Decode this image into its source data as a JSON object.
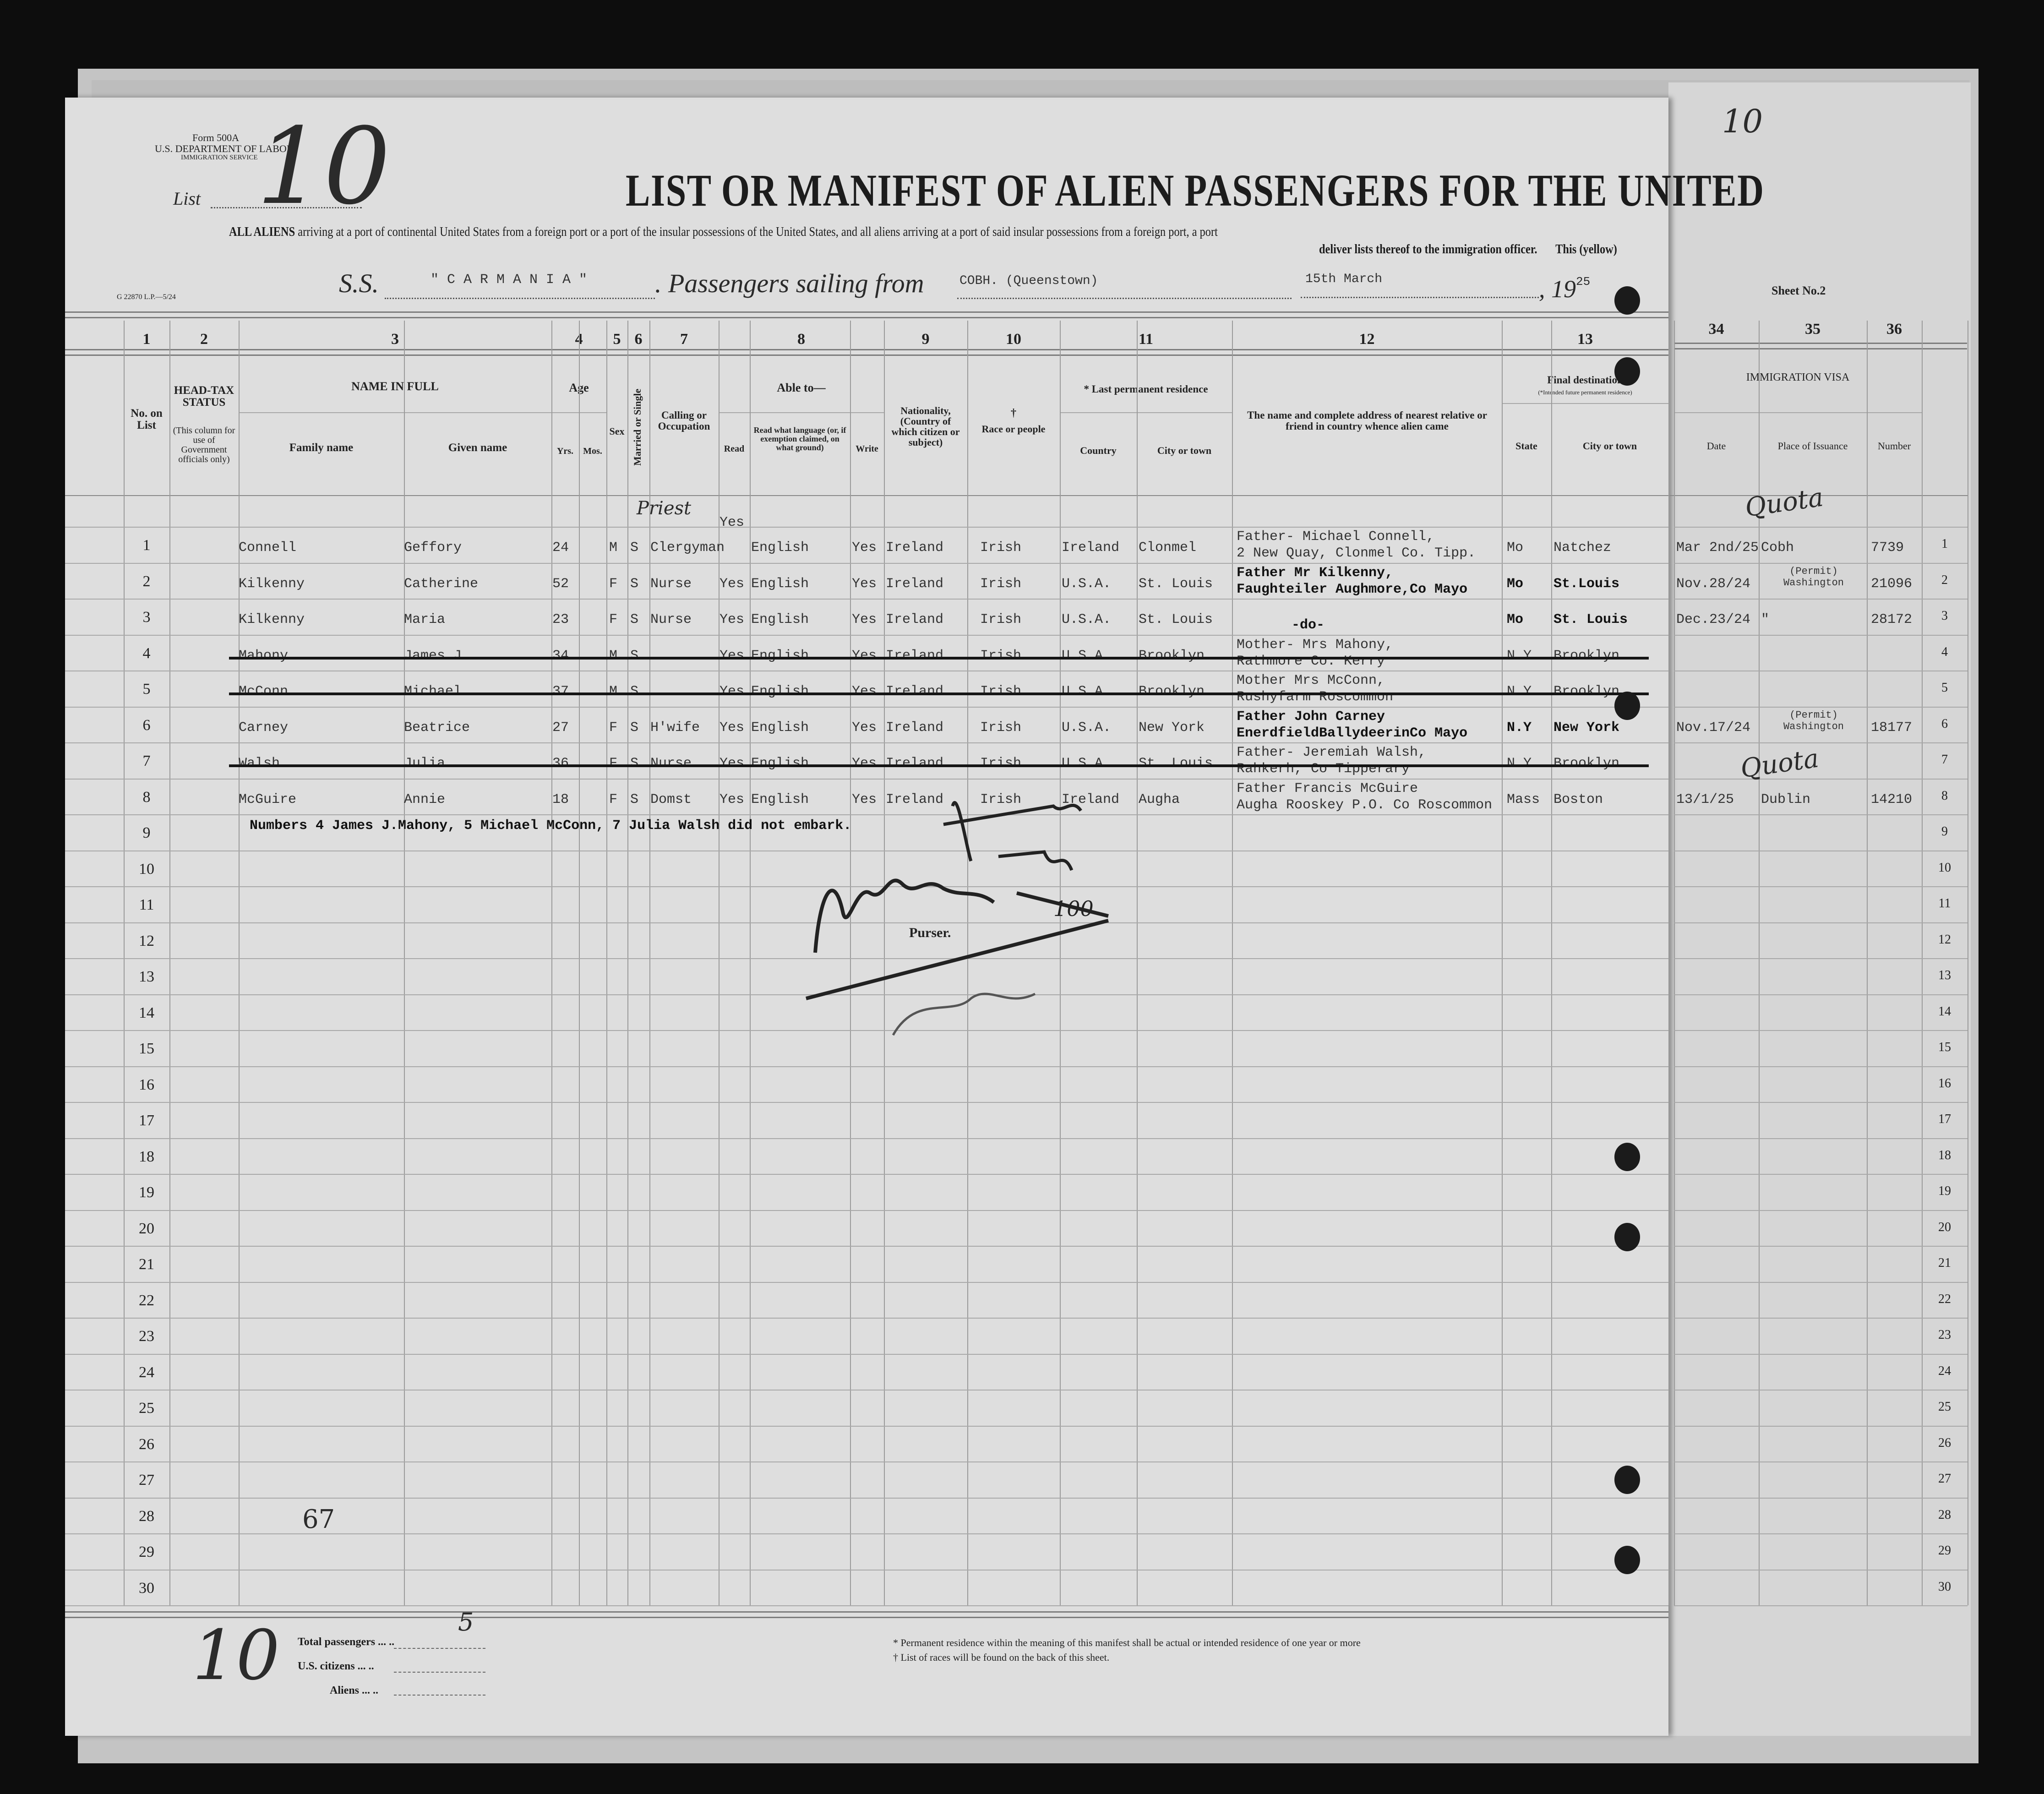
{
  "form": {
    "form_number": "Form 500A",
    "department": "U.S. DEPARTMENT OF LABOR",
    "service": "IMMIGRATION SERVICE",
    "list_label": "List",
    "print_code": "G 22870 L.P.—5/24",
    "title": "LIST OR MANIFEST OF ALIEN PASSENGERS FOR THE UNITED",
    "instructions_line1_bold": "ALL ALIENS",
    "instructions_line1": "arriving at a port of continental United States from a foreign port or a port of the insular possessions of the United States, and all aliens arriving at a port of said insular possessions from a foreign port, a port",
    "instructions_line2": "deliver lists thereof to the immigration officer.",
    "instructions_line2_end": "This (yellow)",
    "ss_label": "S.S.",
    "ship_name": "\"CARMANIA\"",
    "sailing_label": ". Passengers sailing from",
    "port": "COBH. (Queenstown)",
    "date": "15th March",
    "year_prefix": ", 19",
    "year_suffix": "25",
    "sheet": "Sheet No.2"
  },
  "columns": {
    "numbers": [
      "1",
      "2",
      "3",
      "4",
      "5",
      "6",
      "7",
      "8",
      "9",
      "10",
      "11",
      "12",
      "13",
      "34",
      "35",
      "36"
    ],
    "no_on_list": "No. on List",
    "head_tax": "HEAD-TAX STATUS",
    "head_tax_note": "(This column for use of Government officials only)",
    "name_in_full": "NAME IN FULL",
    "family_name": "Family name",
    "given_name": "Given name",
    "age": "Age",
    "yrs": "Yrs.",
    "mos": "Mos.",
    "sex": "Sex",
    "married": "Married or Single",
    "occupation": "Calling or Occupation",
    "able_to": "Able to—",
    "read": "Read",
    "read_language": "Read what language (or, if exemption claimed, on what ground)",
    "write": "Write",
    "nationality": "Nationality, (Country of which citizen or subject)",
    "race": "Race or people",
    "race_mark": "†",
    "last_residence": "* Last permanent residence",
    "country": "Country",
    "city": "City or town",
    "relative": "The name and complete address of nearest relative or friend in country whence alien came",
    "final_destination": "Final destination",
    "final_note": "(*Intended future permanent residence)",
    "state": "State",
    "dest_city": "City or town",
    "immigration_visa": "IMMIGRATION VISA",
    "visa_date": "Date",
    "visa_place": "Place of Issuance",
    "visa_number": "Number"
  },
  "passengers": [
    {
      "no": "1",
      "family": "Connell",
      "given": "Geffory",
      "age": "24",
      "sex": "M",
      "status": "S",
      "occupation": "Clergyman",
      "read": "Yes",
      "language": "English",
      "write": "Yes",
      "nationality": "Ireland",
      "race": "Irish",
      "country": "Ireland",
      "city": "Clonmel",
      "relative1": "Father- Michael Connell,",
      "relative2": "2 New Quay, Clonmel Co. Tipp.",
      "state": "Mo",
      "dest_city": "Natchez",
      "visa_date": "Mar 2nd/25",
      "visa_place": "Cobh",
      "visa_number": "7739",
      "struck": false
    },
    {
      "no": "2",
      "family": "Kilkenny",
      "given": "Catherine",
      "age": "52",
      "sex": "F",
      "status": "S",
      "occupation": "Nurse",
      "read": "Yes",
      "language": "English",
      "write": "Yes",
      "nationality": "Ireland",
      "race": "Irish",
      "country": "U.S.A.",
      "city": "St. Louis",
      "relative1": "Father Mr Kilkenny,",
      "relative2": "Faughteiler Aughmore,Co Mayo",
      "state": "Mo",
      "dest_city": "St.Louis",
      "visa_date": "Nov.28/24",
      "visa_place": "(Permit) Washington",
      "visa_number": "21096",
      "struck": false,
      "bold_relative": true
    },
    {
      "no": "3",
      "family": "Kilkenny",
      "given": "Maria",
      "age": "23",
      "sex": "F",
      "status": "S",
      "occupation": "Nurse",
      "read": "Yes",
      "language": "English",
      "write": "Yes",
      "nationality": "Ireland",
      "race": "Irish",
      "country": "U.S.A.",
      "city": "St. Louis",
      "relative1": "",
      "relative2": "-do-",
      "state": "Mo",
      "dest_city": "St. Louis",
      "visa_date": "Dec.23/24",
      "visa_place": "\"",
      "visa_number": "28172",
      "struck": false,
      "bold_relative": true
    },
    {
      "no": "4",
      "family": "Mahony",
      "given": "James J.",
      "age": "34",
      "sex": "M",
      "status": "S",
      "occupation": "",
      "read": "Yes",
      "language": "English",
      "write": "Yes",
      "nationality": "Ireland",
      "race": "Irish",
      "country": "U.S.A.",
      "city": "Brooklyn",
      "relative1": "Mother- Mrs Mahony,",
      "relative2": "Rathmore Co. Kerry",
      "state": "N.Y",
      "dest_city": "Brooklyn",
      "visa_date": "",
      "visa_place": "",
      "visa_number": "",
      "struck": true
    },
    {
      "no": "5",
      "family": "McConn",
      "given": "Michael",
      "age": "37",
      "sex": "M",
      "status": "S",
      "occupation": "",
      "read": "Yes",
      "language": "English",
      "write": "Yes",
      "nationality": "Ireland",
      "race": "Irish",
      "country": "U.S.A.",
      "city": "Brooklyn",
      "relative1": "Mother Mrs McConn,",
      "relative2": "Rushyfarm Roscommon",
      "state": "N.Y",
      "dest_city": "Brooklyn",
      "visa_date": "",
      "visa_place": "",
      "visa_number": "",
      "struck": true
    },
    {
      "no": "6",
      "family": "Carney",
      "given": "Beatrice",
      "age": "27",
      "sex": "F",
      "status": "S",
      "occupation": "H'wife",
      "read": "Yes",
      "language": "English",
      "write": "Yes",
      "nationality": "Ireland",
      "race": "Irish",
      "country": "U.S.A.",
      "city": "New York",
      "relative1": "Father John Carney",
      "relative2": "EnerdfieldBallydeerinCo Mayo",
      "state": "N.Y",
      "dest_city": "New York",
      "visa_date": "Nov.17/24",
      "visa_place": "(Permit) Washington",
      "visa_number": "18177",
      "struck": false,
      "bold_relative": true
    },
    {
      "no": "7",
      "family": "Walsh",
      "given": "Julia",
      "age": "36",
      "sex": "F",
      "status": "S",
      "occupation": "Nurse",
      "read": "Yes",
      "language": "English",
      "write": "Yes",
      "nationality": "Ireland",
      "race": "Irish",
      "country": "U.S.A.",
      "city": "St. Louis",
      "relative1": "Father- Jeremiah Walsh,",
      "relative2": "Rahkerh, Co Tipperary",
      "state": "N.Y",
      "dest_city": "Brooklyn",
      "visa_date": "",
      "visa_place": "",
      "visa_number": "",
      "struck": true
    },
    {
      "no": "8",
      "family": "McGuire",
      "given": "Annie",
      "age": "18",
      "sex": "F",
      "status": "S",
      "occupation": "Domst",
      "read": "Yes",
      "language": "English",
      "write": "Yes",
      "nationality": "Ireland",
      "race": "Irish",
      "country": "Ireland",
      "city": "Augha",
      "relative1": "Father  Francis McGuire",
      "relative2": "Augha  Rooskey P.O. Co Roscommon",
      "state": "Mass",
      "dest_city": "Boston",
      "visa_date": "13/1/25",
      "visa_place": "Dublin",
      "visa_number": "14210",
      "struck": false
    }
  ],
  "row_count": 30,
  "note": "Numbers 4 James J.Mahony, 5 Michael McConn, 7 Julia Walsh did not embark.",
  "annotations": {
    "list_number": "10",
    "purser": "Purser.",
    "page_mark": "67",
    "quota_1": "Quota",
    "quota_2": "Quota",
    "priest": "Priest",
    "back_sheet_number": "10",
    "footer_number": "10"
  },
  "footer": {
    "total_passengers_label": "Total passengers ...  ..",
    "total_passengers": "5",
    "us_citizens_label": "U.S. citizens ...  ..",
    "aliens_label": "Aliens ...  ..",
    "footnote1": "* Permanent residence within the meaning of this manifest shall be actual or intended residence of one year or more",
    "footnote2": "† List of races will be found on the back of this sheet."
  }
}
